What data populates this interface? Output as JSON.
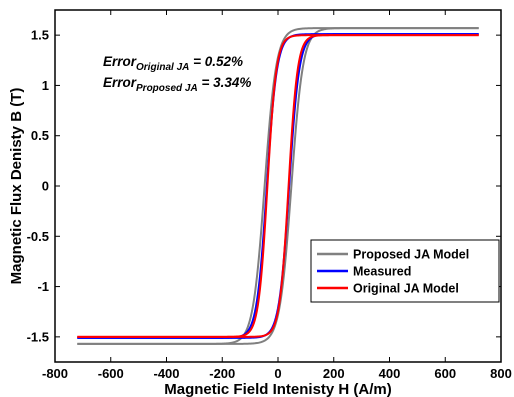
{
  "chart_data": {
    "type": "line",
    "xlabel": "Magnetic Field Intenisty H (A/m)",
    "ylabel": "Magnetic Flux Denisty B (T)",
    "xlim": [
      -800,
      800
    ],
    "ylim": [
      -1.75,
      1.75
    ],
    "xticks": [
      -800,
      -600,
      -400,
      -200,
      0,
      200,
      400,
      600,
      800
    ],
    "yticks": [
      -1.5,
      -1,
      -0.5,
      0,
      0.5,
      1,
      1.5
    ],
    "xtick_labels": [
      "-800",
      "-600",
      "-400",
      "-200",
      "0",
      "200",
      "400",
      "600",
      "800"
    ],
    "ytick_labels": [
      "-1.5",
      "-1",
      "-0.5",
      "0",
      "0.5",
      "1",
      "1.5"
    ],
    "grid": false,
    "legend_position": "bottom-right",
    "annotations": [
      {
        "base": "Error",
        "sub": "Original JA",
        "value": " = 0.52%"
      },
      {
        "base": "Error",
        "sub": "Proposed JA",
        "value": " = 3.34%"
      }
    ],
    "series": [
      {
        "name": "Proposed JA Model",
        "color": "#808080",
        "hysteresis": {
          "H_max": 720,
          "B_sat": 1.57,
          "coercivity": 48,
          "shape": 42
        }
      },
      {
        "name": "Measured",
        "color": "#0000ff",
        "hysteresis": {
          "H_max": 720,
          "B_sat": 1.51,
          "coercivity": 40,
          "shape": 36
        }
      },
      {
        "name": "Original JA Model",
        "color": "#ff0000",
        "hysteresis": {
          "H_max": 720,
          "B_sat": 1.5,
          "coercivity": 38,
          "shape": 32
        }
      }
    ]
  }
}
